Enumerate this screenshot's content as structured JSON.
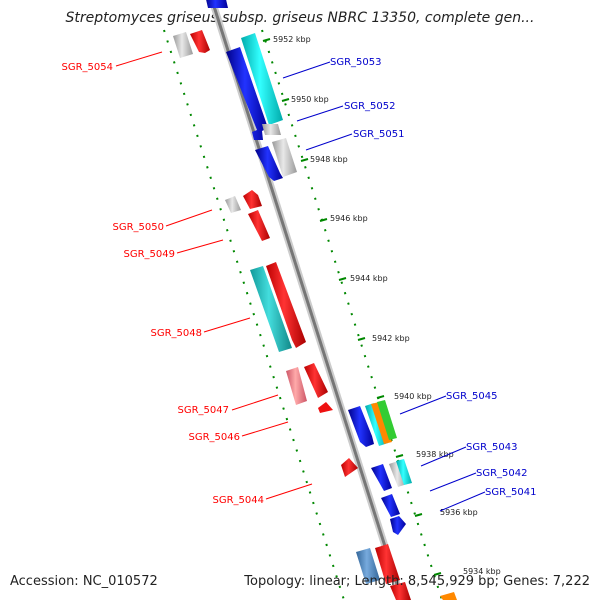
{
  "title": "Streptomyces griseus subsp. griseus NBRC 13350, complete gen...",
  "accession": "Accession: NC_010572",
  "summary": "Topology: linear; Length: 8,545,929 bp; Genes: 7,222",
  "colors": {
    "left_label": "#ff0000",
    "right_label": "#0000cc",
    "guide": "#008800",
    "axis": "#999999"
  },
  "ticks": [
    "5952 kbp",
    "5950 kbp",
    "5948 kbp",
    "5946 kbp",
    "5944 kbp",
    "5942 kbp",
    "5940 kbp",
    "5938 kbp",
    "5936 kbp",
    "5934 kbp"
  ],
  "left_genes": [
    "SGR_5054",
    "SGR_5050",
    "SGR_5049",
    "SGR_5048",
    "SGR_5047",
    "SGR_5046",
    "SGR_5044"
  ],
  "right_genes": [
    "SGR_5053",
    "SGR_5052",
    "SGR_5051",
    "SGR_5045",
    "SGR_5043",
    "SGR_5042",
    "SGR_5041"
  ]
}
